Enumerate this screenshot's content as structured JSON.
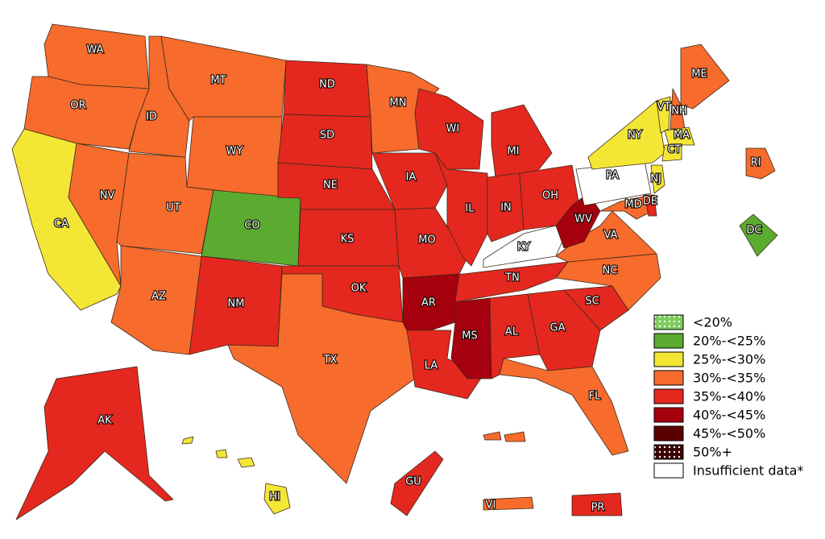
{
  "legend": [
    {
      "label": "<20%",
      "color": "#7ccd5c",
      "pattern": "dots"
    },
    {
      "label": "20%-<25%",
      "color": "#5aab2f"
    },
    {
      "label": "25%-<30%",
      "color": "#f4e635"
    },
    {
      "label": "30%-<35%",
      "color": "#f76b2c"
    },
    {
      "label": "35%-<40%",
      "color": "#e4281f"
    },
    {
      "label": "40%-<45%",
      "color": "#a6000e"
    },
    {
      "label": "45%-<50%",
      "color": "#5a0000"
    },
    {
      "label": "50%+",
      "color": "#3a0000",
      "pattern": "dots"
    },
    {
      "label": "Insufficient data*",
      "color": "#ffffff"
    }
  ],
  "regions": [
    {
      "label": "WA",
      "category": "30%-<35%"
    },
    {
      "label": "OR",
      "category": "30%-<35%"
    },
    {
      "label": "CA",
      "category": "25%-<30%"
    },
    {
      "label": "NV",
      "category": "30%-<35%"
    },
    {
      "label": "ID",
      "category": "30%-<35%"
    },
    {
      "label": "MT",
      "category": "30%-<35%"
    },
    {
      "label": "WY",
      "category": "30%-<35%"
    },
    {
      "label": "UT",
      "category": "30%-<35%"
    },
    {
      "label": "CO",
      "category": "20%-<25%"
    },
    {
      "label": "AZ",
      "category": "30%-<35%"
    },
    {
      "label": "NM",
      "category": "35%-<40%"
    },
    {
      "label": "ND",
      "category": "35%-<40%"
    },
    {
      "label": "SD",
      "category": "35%-<40%"
    },
    {
      "label": "NE",
      "category": "35%-<40%"
    },
    {
      "label": "KS",
      "category": "35%-<40%"
    },
    {
      "label": "OK",
      "category": "35%-<40%"
    },
    {
      "label": "TX",
      "category": "30%-<35%"
    },
    {
      "label": "MN",
      "category": "30%-<35%"
    },
    {
      "label": "IA",
      "category": "35%-<40%"
    },
    {
      "label": "MO",
      "category": "35%-<40%"
    },
    {
      "label": "AR",
      "category": "40%-<45%"
    },
    {
      "label": "LA",
      "category": "35%-<40%"
    },
    {
      "label": "WI",
      "category": "35%-<40%"
    },
    {
      "label": "IL",
      "category": "35%-<40%"
    },
    {
      "label": "MI",
      "category": "35%-<40%"
    },
    {
      "label": "IN",
      "category": "35%-<40%"
    },
    {
      "label": "OH",
      "category": "35%-<40%"
    },
    {
      "label": "KY",
      "category": "Insufficient data*"
    },
    {
      "label": "TN",
      "category": "35%-<40%"
    },
    {
      "label": "MS",
      "category": "40%-<45%"
    },
    {
      "label": "AL",
      "category": "35%-<40%"
    },
    {
      "label": "GA",
      "category": "35%-<40%"
    },
    {
      "label": "FL",
      "category": "30%-<35%"
    },
    {
      "label": "SC",
      "category": "35%-<40%"
    },
    {
      "label": "NC",
      "category": "30%-<35%"
    },
    {
      "label": "VA",
      "category": "30%-<35%"
    },
    {
      "label": "WV",
      "category": "40%-<45%"
    },
    {
      "label": "PA",
      "category": "Insufficient data*"
    },
    {
      "label": "NY",
      "category": "25%-<30%"
    },
    {
      "label": "MD",
      "category": "30%-<35%"
    },
    {
      "label": "DE",
      "category": "35%-<40%"
    },
    {
      "label": "NJ",
      "category": "25%-<30%"
    },
    {
      "label": "VT",
      "category": "25%-<30%"
    },
    {
      "label": "NH",
      "category": "30%-<35%"
    },
    {
      "label": "ME",
      "category": "30%-<35%"
    },
    {
      "label": "MA",
      "category": "25%-<30%"
    },
    {
      "label": "CT",
      "category": "25%-<30%"
    },
    {
      "label": "RI",
      "category": "30%-<35%"
    },
    {
      "label": "DC",
      "category": "20%-<25%"
    },
    {
      "label": "AK",
      "category": "35%-<40%"
    },
    {
      "label": "HI",
      "category": "25%-<30%"
    },
    {
      "label": "GU",
      "category": "35%-<40%"
    },
    {
      "label": "PR",
      "category": "35%-<40%"
    },
    {
      "label": "VI",
      "category": "30%-<35%"
    }
  ]
}
